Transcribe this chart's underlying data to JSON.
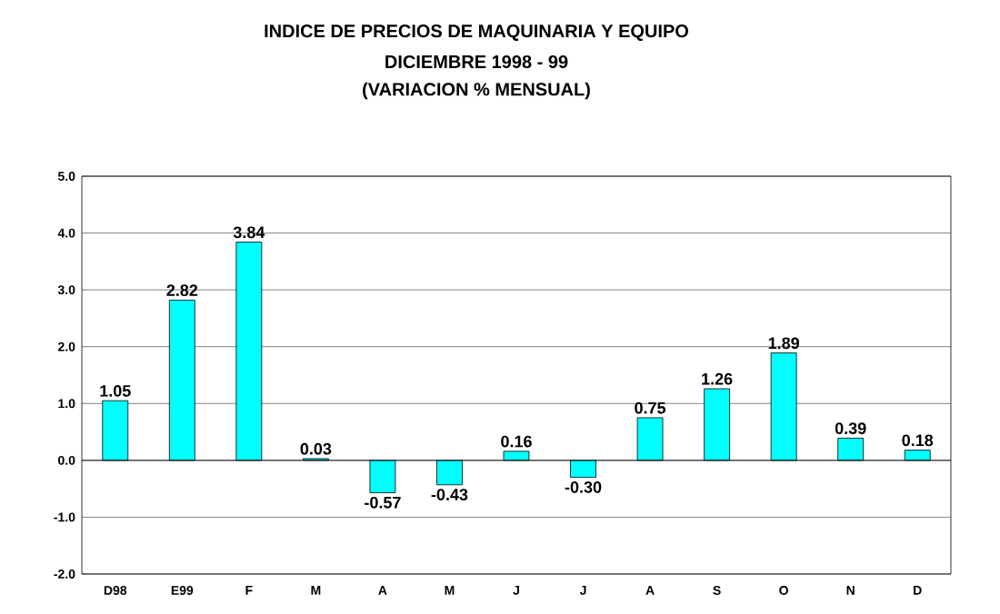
{
  "chart_data": {
    "type": "bar",
    "title": "INDICE DE PRECIOS DE MAQUINARIA Y EQUIPO",
    "subtitle": "DICIEMBRE 1998 - 99",
    "annotations": [
      "(VARIACION % MENSUAL)"
    ],
    "categories": [
      "D98",
      "E99",
      "F",
      "M",
      "A",
      "M",
      "J",
      "J",
      "A",
      "S",
      "O",
      "N",
      "D"
    ],
    "values": [
      1.05,
      2.82,
      3.84,
      0.03,
      -0.57,
      -0.43,
      0.16,
      -0.3,
      0.75,
      1.26,
      1.89,
      0.39,
      0.18
    ],
    "value_labels": [
      "1.05",
      "2.82",
      "3.84",
      "0.03",
      "-0.57",
      "-0.43",
      "0.16",
      "-0.30",
      "0.75",
      "1.26",
      "1.89",
      "0.39",
      "0.18"
    ],
    "color": "#00ffff",
    "ylim": [
      -2,
      5
    ],
    "yticks": [
      {
        "value": -2,
        "label": "-2.0"
      },
      {
        "value": -1,
        "label": "-1.0"
      },
      {
        "value": 0,
        "label": "0.0"
      },
      {
        "value": 1,
        "label": "1.0"
      },
      {
        "value": 2,
        "label": "2.0"
      },
      {
        "value": 3,
        "label": "3.0"
      },
      {
        "value": 4,
        "label": "4.0"
      },
      {
        "value": 5,
        "label": "5.0"
      }
    ],
    "grid": "y"
  }
}
